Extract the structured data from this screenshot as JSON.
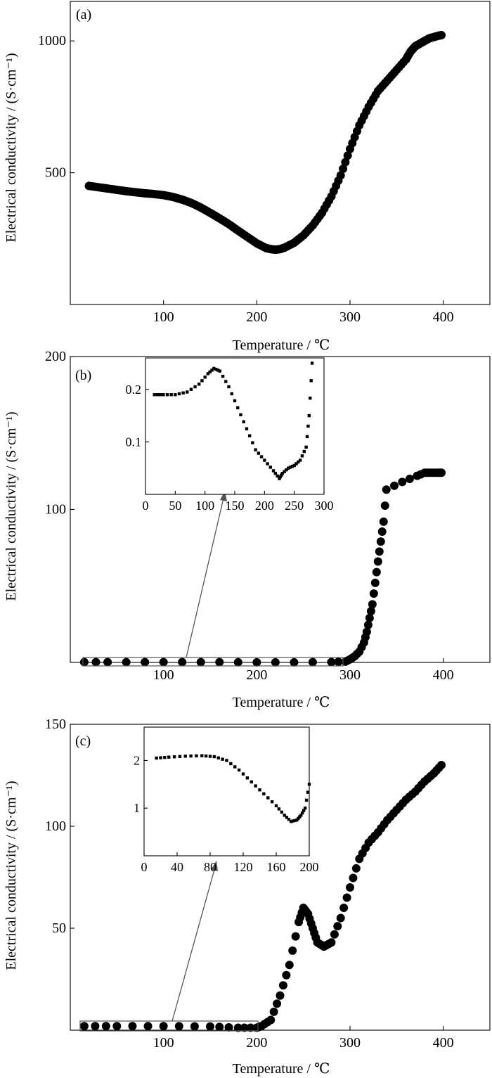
{
  "chart_data": [
    {
      "type": "scatter",
      "panel_label": "(a)",
      "xlabel": "Temperature / ℃",
      "ylabel": "Electrical conductivity / (S·cm⁻¹)",
      "xlim": [
        0,
        450
      ],
      "ylim": [
        0,
        1150
      ],
      "xticks": [
        100,
        200,
        300,
        400
      ],
      "yticks": [
        500,
        1000
      ],
      "marker": "circle",
      "x": [
        20,
        30,
        40,
        50,
        60,
        70,
        80,
        90,
        100,
        110,
        120,
        130,
        140,
        150,
        160,
        170,
        180,
        190,
        200,
        210,
        215,
        220,
        225,
        230,
        240,
        250,
        260,
        270,
        280,
        290,
        300,
        310,
        320,
        330,
        340,
        350,
        360,
        365,
        370,
        375,
        380,
        385,
        390,
        395,
        398
      ],
      "y": [
        450,
        445,
        440,
        435,
        430,
        426,
        422,
        419,
        415,
        408,
        398,
        385,
        368,
        348,
        327,
        305,
        280,
        256,
        232,
        214,
        210,
        208,
        210,
        216,
        234,
        262,
        300,
        348,
        410,
        490,
        590,
        680,
        750,
        810,
        850,
        890,
        930,
        960,
        980,
        990,
        1000,
        1010,
        1015,
        1020,
        1022
      ]
    },
    {
      "type": "scatter",
      "panel_label": "(b)",
      "xlabel": "Temperature / ℃",
      "ylabel": "Electrical conductivity / (S·cm⁻¹)",
      "xlim": [
        0,
        450
      ],
      "ylim": [
        0,
        200
      ],
      "xticks": [
        100,
        200,
        300,
        400
      ],
      "yticks": [
        100,
        200
      ],
      "marker": "circle",
      "x": [
        15,
        40,
        80,
        120,
        160,
        200,
        240,
        280,
        295,
        300,
        305,
        310,
        315,
        318,
        321,
        324,
        327,
        330,
        333,
        336,
        339,
        356,
        372,
        380,
        385,
        390,
        395,
        398
      ],
      "y": [
        0.2,
        0.2,
        0.2,
        0.2,
        0.15,
        0.08,
        0.05,
        0.25,
        0.5,
        2,
        4,
        7,
        13,
        20,
        29,
        38,
        52,
        66,
        79,
        92,
        113,
        118,
        122,
        124,
        124,
        124,
        124,
        124
      ],
      "inset": {
        "type": "scatter",
        "xlim": [
          0,
          300
        ],
        "ylim": [
          0,
          0.26
        ],
        "xticks": [
          0,
          50,
          100,
          150,
          200,
          250,
          300
        ],
        "yticks": [
          0.1,
          0.2
        ],
        "marker": "square",
        "x": [
          15,
          30,
          50,
          70,
          90,
          105,
          115,
          125,
          140,
          155,
          170,
          185,
          200,
          215,
          225,
          230,
          240,
          250,
          260,
          270,
          275,
          280
        ],
        "y": [
          0.19,
          0.19,
          0.19,
          0.195,
          0.21,
          0.23,
          0.24,
          0.235,
          0.205,
          0.165,
          0.125,
          0.085,
          0.065,
          0.045,
          0.03,
          0.04,
          0.05,
          0.055,
          0.065,
          0.09,
          0.15,
          0.25
        ]
      }
    },
    {
      "type": "scatter",
      "panel_label": "(c)",
      "xlabel": "Temperature / ℃",
      "ylabel": "Electrical conductivity / (S·cm⁻¹)",
      "xlim": [
        0,
        450
      ],
      "ylim": [
        0,
        150
      ],
      "xticks": [
        100,
        200,
        300,
        400
      ],
      "yticks": [
        50,
        100,
        150
      ],
      "marker": "circle",
      "x": [
        15,
        50,
        100,
        150,
        180,
        200,
        205,
        215,
        225,
        235,
        245,
        250,
        255,
        260,
        265,
        272,
        280,
        290,
        300,
        310,
        320,
        330,
        340,
        350,
        360,
        370,
        380,
        390,
        398
      ],
      "y": [
        2,
        2,
        2,
        1.8,
        1.2,
        1.2,
        2,
        5,
        17,
        32,
        53,
        60,
        57,
        50,
        43,
        41,
        43,
        55,
        70,
        84,
        92,
        97,
        103,
        108,
        113,
        117,
        122,
        126,
        130
      ],
      "inset": {
        "type": "scatter",
        "xlim": [
          0,
          200
        ],
        "ylim": [
          0,
          2.7
        ],
        "xticks": [
          0,
          40,
          80,
          120,
          160,
          200
        ],
        "yticks": [
          1,
          2
        ],
        "marker": "square",
        "x": [
          15,
          30,
          50,
          70,
          85,
          100,
          115,
          130,
          145,
          160,
          170,
          178,
          185,
          190,
          195,
          200
        ],
        "y": [
          2.05,
          2.07,
          2.09,
          2.1,
          2.08,
          2.0,
          1.8,
          1.55,
          1.3,
          1.05,
          0.85,
          0.72,
          0.75,
          0.85,
          1.0,
          1.5
        ]
      }
    }
  ]
}
